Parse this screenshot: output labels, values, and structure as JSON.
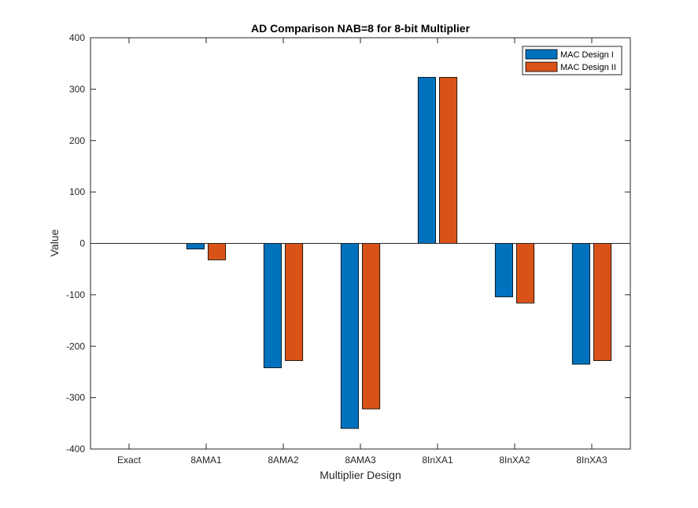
{
  "chart_data": {
    "type": "bar",
    "title": "AD Comparison NAB=8 for 8-bit Multiplier",
    "xlabel": "Multiplier Design",
    "ylabel": "Value",
    "categories": [
      "Exact",
      "8AMA1",
      "8AMA2",
      "8AMA3",
      "8InXA1",
      "8InXA2",
      "8InXA3"
    ],
    "series": [
      {
        "name": "MAC Design I",
        "color": "#0072BD",
        "values": [
          0,
          -11,
          -242,
          -360,
          323,
          -104,
          -235
        ]
      },
      {
        "name": "MAC Design II",
        "color": "#D95319",
        "values": [
          0,
          -32,
          -228,
          -322,
          323,
          -116,
          -228
        ]
      }
    ],
    "ylim": [
      -400,
      400
    ],
    "yticks": [
      -400,
      -300,
      -200,
      -100,
      0,
      100,
      200,
      300,
      400
    ],
    "grid": false,
    "legend_position": "top-right"
  }
}
